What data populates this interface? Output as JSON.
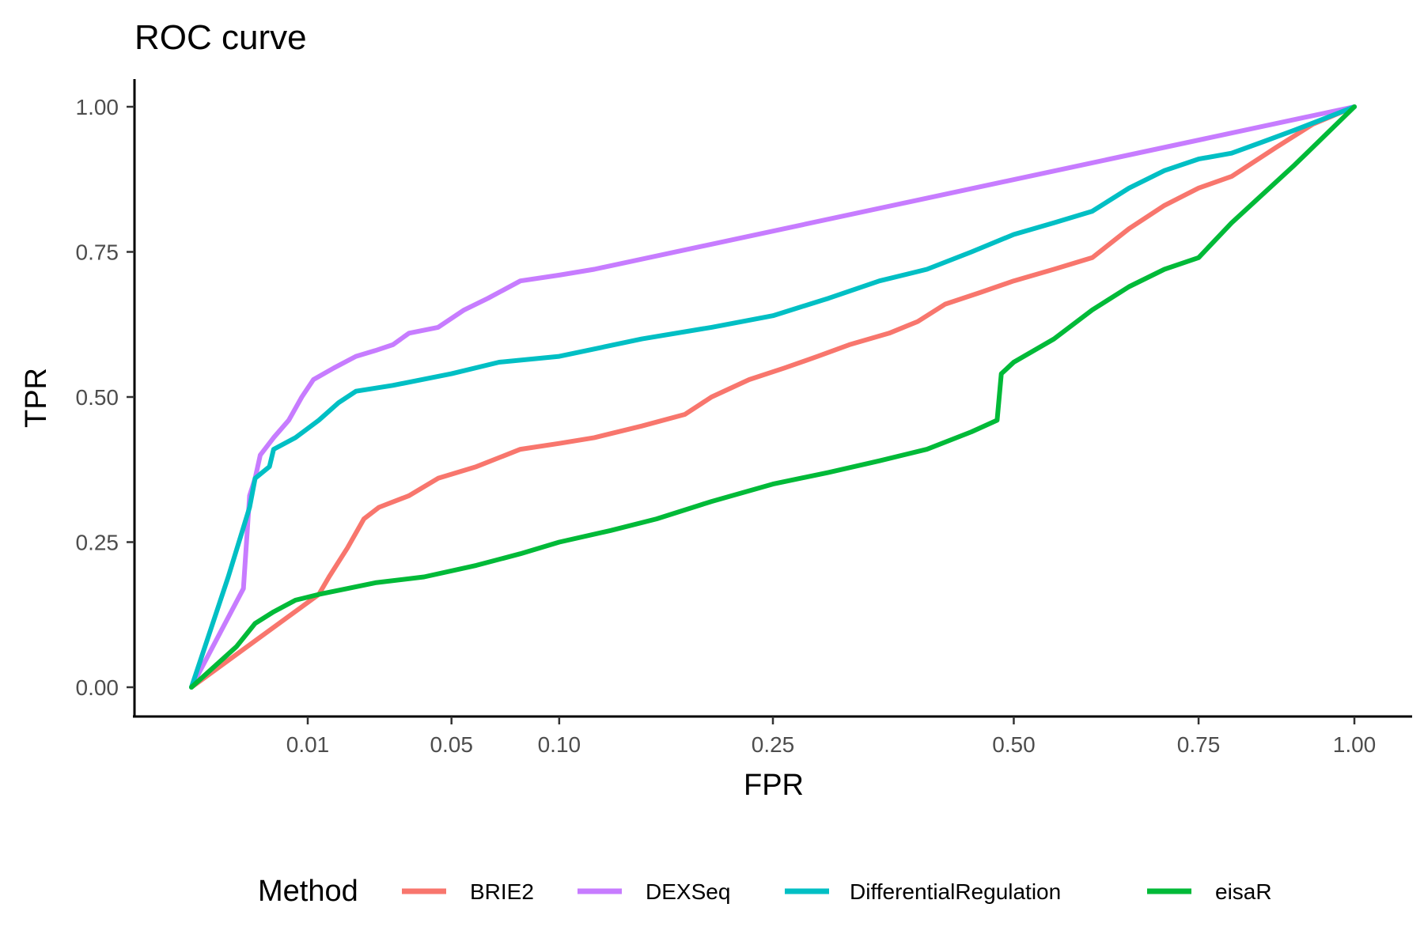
{
  "chart_data": {
    "type": "line",
    "title": "ROC curve",
    "xlabel": "FPR",
    "ylabel": "TPR",
    "x_scale": "sqrt",
    "xlim": [
      0,
      1
    ],
    "ylim": [
      0,
      1
    ],
    "x_ticks": [
      {
        "value": 0.01,
        "label": "0.01"
      },
      {
        "value": 0.05,
        "label": "0.05"
      },
      {
        "value": 0.1,
        "label": "0.10"
      },
      {
        "value": 0.25,
        "label": "0.25"
      },
      {
        "value": 0.5,
        "label": "0.50"
      },
      {
        "value": 0.75,
        "label": "0.75"
      },
      {
        "value": 1.0,
        "label": "1.00"
      }
    ],
    "y_ticks": [
      {
        "value": 0.0,
        "label": "0.00"
      },
      {
        "value": 0.25,
        "label": "0.25"
      },
      {
        "value": 0.5,
        "label": "0.50"
      },
      {
        "value": 0.75,
        "label": "0.75"
      },
      {
        "value": 1.0,
        "label": "1.00"
      }
    ],
    "grid": false,
    "legend": {
      "title": "Method",
      "position": "bottom"
    },
    "series": [
      {
        "name": "BRIE2",
        "color": "#F8766D",
        "points": [
          [
            0,
            0
          ],
          [
            0.012,
            0.16
          ],
          [
            0.014,
            0.19
          ],
          [
            0.018,
            0.24
          ],
          [
            0.022,
            0.29
          ],
          [
            0.026,
            0.31
          ],
          [
            0.035,
            0.33
          ],
          [
            0.045,
            0.36
          ],
          [
            0.06,
            0.38
          ],
          [
            0.08,
            0.41
          ],
          [
            0.1,
            0.42
          ],
          [
            0.12,
            0.43
          ],
          [
            0.15,
            0.45
          ],
          [
            0.18,
            0.47
          ],
          [
            0.2,
            0.5
          ],
          [
            0.23,
            0.53
          ],
          [
            0.26,
            0.55
          ],
          [
            0.29,
            0.57
          ],
          [
            0.32,
            0.59
          ],
          [
            0.36,
            0.61
          ],
          [
            0.39,
            0.63
          ],
          [
            0.42,
            0.66
          ],
          [
            0.46,
            0.68
          ],
          [
            0.5,
            0.7
          ],
          [
            0.55,
            0.72
          ],
          [
            0.6,
            0.74
          ],
          [
            0.65,
            0.79
          ],
          [
            0.7,
            0.83
          ],
          [
            0.75,
            0.86
          ],
          [
            0.8,
            0.88
          ],
          [
            0.87,
            0.93
          ],
          [
            0.93,
            0.97
          ],
          [
            1,
            1
          ]
        ]
      },
      {
        "name": "DEXSeq",
        "color": "#C77CFF",
        "points": [
          [
            0,
            0
          ],
          [
            0.002,
            0.17
          ],
          [
            0.0025,
            0.33
          ],
          [
            0.003,
            0.36
          ],
          [
            0.0035,
            0.4
          ],
          [
            0.005,
            0.43
          ],
          [
            0.007,
            0.46
          ],
          [
            0.009,
            0.5
          ],
          [
            0.011,
            0.53
          ],
          [
            0.015,
            0.55
          ],
          [
            0.02,
            0.57
          ],
          [
            0.025,
            0.58
          ],
          [
            0.03,
            0.59
          ],
          [
            0.035,
            0.61
          ],
          [
            0.045,
            0.62
          ],
          [
            0.055,
            0.65
          ],
          [
            0.065,
            0.67
          ],
          [
            0.08,
            0.7
          ],
          [
            0.1,
            0.71
          ],
          [
            0.12,
            0.72
          ],
          [
            1,
            1
          ]
        ]
      },
      {
        "name": "DifferentialRegulation",
        "color": "#00BFC4",
        "points": [
          [
            0,
            0
          ],
          [
            0.001,
            0.19
          ],
          [
            0.0025,
            0.31
          ],
          [
            0.003,
            0.36
          ],
          [
            0.0045,
            0.38
          ],
          [
            0.005,
            0.41
          ],
          [
            0.008,
            0.43
          ],
          [
            0.012,
            0.46
          ],
          [
            0.016,
            0.49
          ],
          [
            0.02,
            0.51
          ],
          [
            0.03,
            0.52
          ],
          [
            0.05,
            0.54
          ],
          [
            0.07,
            0.56
          ],
          [
            0.1,
            0.57
          ],
          [
            0.15,
            0.6
          ],
          [
            0.2,
            0.62
          ],
          [
            0.25,
            0.64
          ],
          [
            0.3,
            0.67
          ],
          [
            0.35,
            0.7
          ],
          [
            0.4,
            0.72
          ],
          [
            0.45,
            0.75
          ],
          [
            0.5,
            0.78
          ],
          [
            0.55,
            0.8
          ],
          [
            0.6,
            0.82
          ],
          [
            0.65,
            0.86
          ],
          [
            0.7,
            0.89
          ],
          [
            0.75,
            0.91
          ],
          [
            0.8,
            0.92
          ],
          [
            0.85,
            0.94
          ],
          [
            0.9,
            0.96
          ],
          [
            0.95,
            0.98
          ],
          [
            1,
            1
          ]
        ]
      },
      {
        "name": "eisaR",
        "color": "#00BA38",
        "points": [
          [
            0,
            0
          ],
          [
            0.0015,
            0.07
          ],
          [
            0.003,
            0.11
          ],
          [
            0.005,
            0.13
          ],
          [
            0.008,
            0.15
          ],
          [
            0.012,
            0.16
          ],
          [
            0.018,
            0.17
          ],
          [
            0.025,
            0.18
          ],
          [
            0.04,
            0.19
          ],
          [
            0.06,
            0.21
          ],
          [
            0.08,
            0.23
          ],
          [
            0.1,
            0.25
          ],
          [
            0.13,
            0.27
          ],
          [
            0.16,
            0.29
          ],
          [
            0.2,
            0.32
          ],
          [
            0.25,
            0.35
          ],
          [
            0.3,
            0.37
          ],
          [
            0.35,
            0.39
          ],
          [
            0.4,
            0.41
          ],
          [
            0.45,
            0.44
          ],
          [
            0.48,
            0.46
          ],
          [
            0.485,
            0.54
          ],
          [
            0.5,
            0.56
          ],
          [
            0.55,
            0.6
          ],
          [
            0.6,
            0.65
          ],
          [
            0.65,
            0.69
          ],
          [
            0.7,
            0.72
          ],
          [
            0.75,
            0.74
          ],
          [
            0.8,
            0.8
          ],
          [
            0.9,
            0.9
          ],
          [
            1,
            1
          ]
        ]
      }
    ]
  }
}
